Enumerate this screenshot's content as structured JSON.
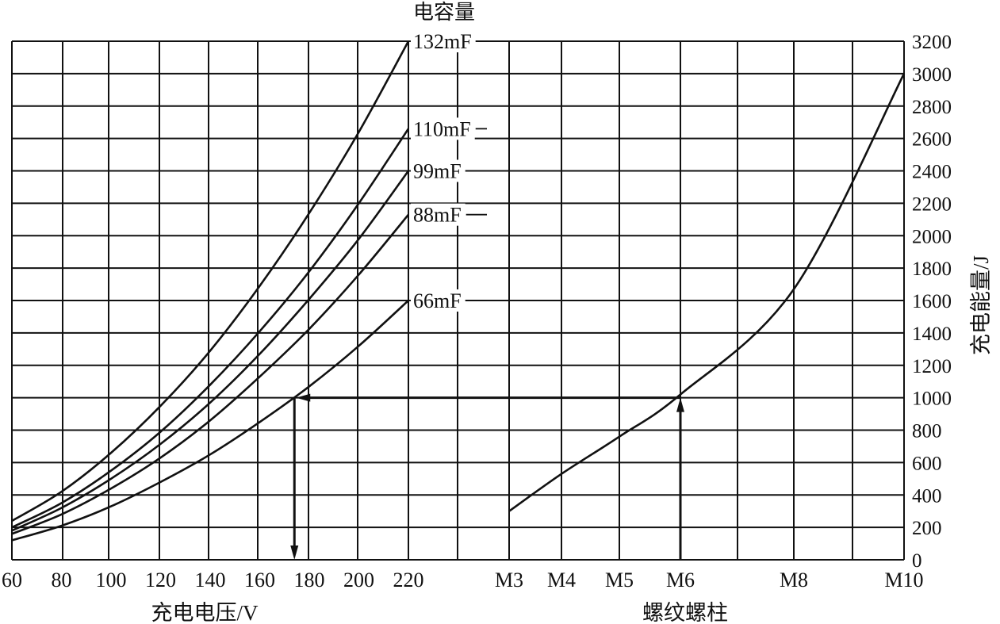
{
  "chart_data": {
    "type": "line",
    "left_panel": {
      "x_title": "充电电压/V",
      "x_ticks": [
        "60",
        "80",
        "100",
        "120",
        "140",
        "160",
        "180",
        "200",
        "220"
      ],
      "x_range": [
        60,
        220
      ],
      "legend_title": "电容量",
      "series": [
        {
          "name": "132mF",
          "x": [
            60,
            80,
            100,
            120,
            140,
            160,
            180,
            200,
            220
          ],
          "y": [
            240,
            420,
            660,
            950,
            1290,
            1690,
            2140,
            2640,
            3200
          ]
        },
        {
          "name": "110mF",
          "x": [
            60,
            80,
            100,
            120,
            140,
            160,
            180,
            200,
            220
          ],
          "y": [
            200,
            350,
            550,
            790,
            1080,
            1410,
            1780,
            2200,
            2660
          ]
        },
        {
          "name": "99mF",
          "x": [
            60,
            80,
            100,
            120,
            140,
            160,
            180,
            200,
            220
          ],
          "y": [
            180,
            320,
            500,
            715,
            970,
            1270,
            1610,
            1980,
            2400
          ]
        },
        {
          "name": "88mF",
          "x": [
            60,
            80,
            100,
            120,
            140,
            160,
            180,
            200,
            220
          ],
          "y": [
            160,
            280,
            440,
            630,
            860,
            1130,
            1425,
            1760,
            2130
          ]
        },
        {
          "name": "66mF",
          "x": [
            60,
            80,
            100,
            120,
            140,
            160,
            180,
            200,
            220
          ],
          "y": [
            120,
            210,
            330,
            480,
            650,
            850,
            1070,
            1320,
            1600
          ]
        }
      ]
    },
    "right_panel": {
      "x_title": "螺纹螺柱",
      "x_ticks": [
        "M3",
        "M4",
        "M5",
        "M6",
        "M8",
        "M10"
      ],
      "curve": {
        "x": [
          "M3",
          "M4",
          "M5",
          "M6",
          "M8",
          "M10"
        ],
        "y": [
          300,
          530,
          760,
          1020,
          1670,
          3000
        ]
      }
    },
    "y_axis": {
      "title": "充电能量/J",
      "ticks": [
        "0",
        "200",
        "400",
        "600",
        "800",
        "1000",
        "1200",
        "1400",
        "1600",
        "1800",
        "2000",
        "2200",
        "2400",
        "2600",
        "2800",
        "3000",
        "3200"
      ],
      "range": [
        0,
        3200
      ],
      "position": "right"
    },
    "annotation": {
      "stud": "M6",
      "energy": 1000,
      "voltage": 174,
      "via_series": "66mF"
    }
  }
}
